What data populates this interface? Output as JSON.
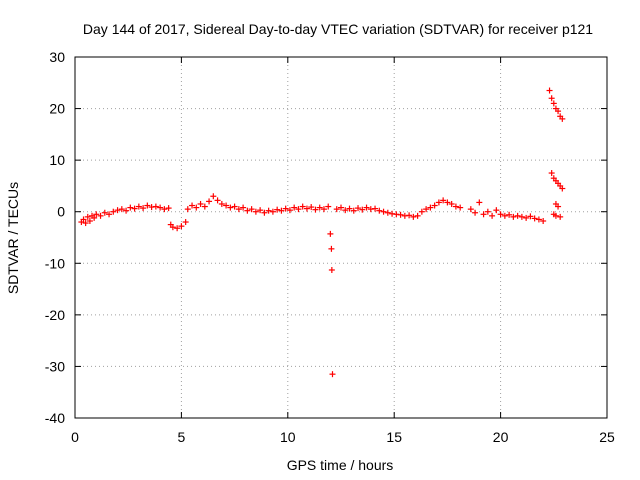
{
  "chart_data": {
    "type": "scatter",
    "title": "Day 144 of 2017, Sidereal Day-to-day VTEC variation (SDTVAR) for receiver p121",
    "xlabel": "GPS time / hours",
    "ylabel": "SDTVAR / TECUs",
    "xlim": [
      0,
      25
    ],
    "ylim": [
      -40,
      30
    ],
    "x_ticks": [
      0,
      5,
      10,
      15,
      20,
      25
    ],
    "y_ticks": [
      -40,
      -30,
      -20,
      -10,
      0,
      10,
      20,
      30
    ],
    "x_tick_labels": [
      "0",
      "5",
      "10",
      "15",
      "20",
      "25"
    ],
    "y_tick_labels": [
      "-40",
      "-30",
      "-20",
      "-10",
      "0",
      "10",
      "20",
      "30"
    ],
    "grid": true,
    "marker": "+",
    "series_color": "#ff0000",
    "series": [
      {
        "name": "SDTVAR",
        "points": [
          [
            0.3,
            -2.0
          ],
          [
            0.4,
            -1.5
          ],
          [
            0.5,
            -2.2
          ],
          [
            0.6,
            -1.0
          ],
          [
            0.7,
            -1.8
          ],
          [
            0.8,
            -0.8
          ],
          [
            0.9,
            -1.2
          ],
          [
            1.0,
            -0.5
          ],
          [
            1.2,
            -0.8
          ],
          [
            1.4,
            -0.2
          ],
          [
            1.6,
            -0.5
          ],
          [
            1.8,
            0.0
          ],
          [
            2.0,
            0.3
          ],
          [
            2.2,
            0.5
          ],
          [
            2.4,
            0.2
          ],
          [
            2.6,
            0.8
          ],
          [
            2.8,
            0.6
          ],
          [
            3.0,
            1.0
          ],
          [
            3.2,
            0.7
          ],
          [
            3.4,
            1.2
          ],
          [
            3.6,
            0.9
          ],
          [
            3.8,
            1.0
          ],
          [
            4.0,
            0.8
          ],
          [
            4.2,
            0.5
          ],
          [
            4.4,
            0.7
          ],
          [
            4.5,
            -2.5
          ],
          [
            4.6,
            -3.0
          ],
          [
            4.8,
            -3.2
          ],
          [
            5.0,
            -2.8
          ],
          [
            5.2,
            -2.0
          ],
          [
            5.3,
            0.5
          ],
          [
            5.5,
            1.2
          ],
          [
            5.7,
            0.8
          ],
          [
            5.9,
            1.5
          ],
          [
            6.1,
            1.0
          ],
          [
            6.3,
            2.0
          ],
          [
            6.5,
            3.0
          ],
          [
            6.7,
            2.2
          ],
          [
            6.9,
            1.5
          ],
          [
            7.1,
            1.2
          ],
          [
            7.3,
            0.8
          ],
          [
            7.5,
            1.0
          ],
          [
            7.7,
            0.5
          ],
          [
            7.9,
            0.8
          ],
          [
            8.1,
            0.2
          ],
          [
            8.3,
            0.5
          ],
          [
            8.5,
            0.0
          ],
          [
            8.7,
            0.3
          ],
          [
            8.9,
            -0.2
          ],
          [
            9.1,
            0.2
          ],
          [
            9.3,
            0.0
          ],
          [
            9.5,
            0.4
          ],
          [
            9.7,
            0.2
          ],
          [
            9.9,
            0.6
          ],
          [
            10.1,
            0.3
          ],
          [
            10.3,
            0.8
          ],
          [
            10.5,
            0.5
          ],
          [
            10.7,
            1.0
          ],
          [
            10.9,
            0.6
          ],
          [
            11.1,
            0.9
          ],
          [
            11.3,
            0.4
          ],
          [
            11.5,
            0.8
          ],
          [
            11.7,
            0.5
          ],
          [
            11.9,
            1.0
          ],
          [
            12.0,
            -4.3
          ],
          [
            12.05,
            -7.2
          ],
          [
            12.07,
            -11.3
          ],
          [
            12.1,
            -31.5
          ],
          [
            12.3,
            0.5
          ],
          [
            12.5,
            0.8
          ],
          [
            12.7,
            0.3
          ],
          [
            12.9,
            0.6
          ],
          [
            13.1,
            0.2
          ],
          [
            13.3,
            0.7
          ],
          [
            13.5,
            0.4
          ],
          [
            13.7,
            0.8
          ],
          [
            13.9,
            0.5
          ],
          [
            14.1,
            0.6
          ],
          [
            14.3,
            0.2
          ],
          [
            14.5,
            0.0
          ],
          [
            14.7,
            -0.2
          ],
          [
            14.9,
            -0.4
          ],
          [
            15.1,
            -0.5
          ],
          [
            15.3,
            -0.6
          ],
          [
            15.5,
            -0.8
          ],
          [
            15.7,
            -0.7
          ],
          [
            15.9,
            -1.0
          ],
          [
            16.1,
            -0.8
          ],
          [
            16.3,
            0.0
          ],
          [
            16.5,
            0.5
          ],
          [
            16.7,
            0.8
          ],
          [
            16.9,
            1.2
          ],
          [
            17.1,
            1.8
          ],
          [
            17.3,
            2.2
          ],
          [
            17.5,
            1.8
          ],
          [
            17.7,
            1.5
          ],
          [
            17.9,
            1.0
          ],
          [
            18.1,
            0.8
          ],
          [
            18.6,
            0.5
          ],
          [
            18.8,
            -0.2
          ],
          [
            19.0,
            1.8
          ],
          [
            19.2,
            -0.5
          ],
          [
            19.4,
            0.0
          ],
          [
            19.6,
            -0.8
          ],
          [
            19.8,
            0.3
          ],
          [
            20.0,
            -0.5
          ],
          [
            20.2,
            -0.8
          ],
          [
            20.4,
            -0.6
          ],
          [
            20.6,
            -1.0
          ],
          [
            20.8,
            -0.8
          ],
          [
            21.0,
            -1.0
          ],
          [
            21.2,
            -1.2
          ],
          [
            21.4,
            -0.9
          ],
          [
            21.6,
            -1.3
          ],
          [
            21.8,
            -1.5
          ],
          [
            22.0,
            -1.8
          ],
          [
            22.3,
            23.5
          ],
          [
            22.4,
            22.0
          ],
          [
            22.5,
            21.0
          ],
          [
            22.6,
            20.0
          ],
          [
            22.7,
            19.5
          ],
          [
            22.8,
            18.5
          ],
          [
            22.9,
            18.0
          ],
          [
            22.4,
            7.5
          ],
          [
            22.5,
            6.5
          ],
          [
            22.6,
            6.0
          ],
          [
            22.7,
            5.5
          ],
          [
            22.8,
            5.0
          ],
          [
            22.9,
            4.5
          ],
          [
            22.6,
            1.5
          ],
          [
            22.7,
            1.0
          ],
          [
            22.5,
            -0.5
          ],
          [
            22.6,
            -0.8
          ],
          [
            22.8,
            -1.0
          ]
        ]
      }
    ]
  }
}
